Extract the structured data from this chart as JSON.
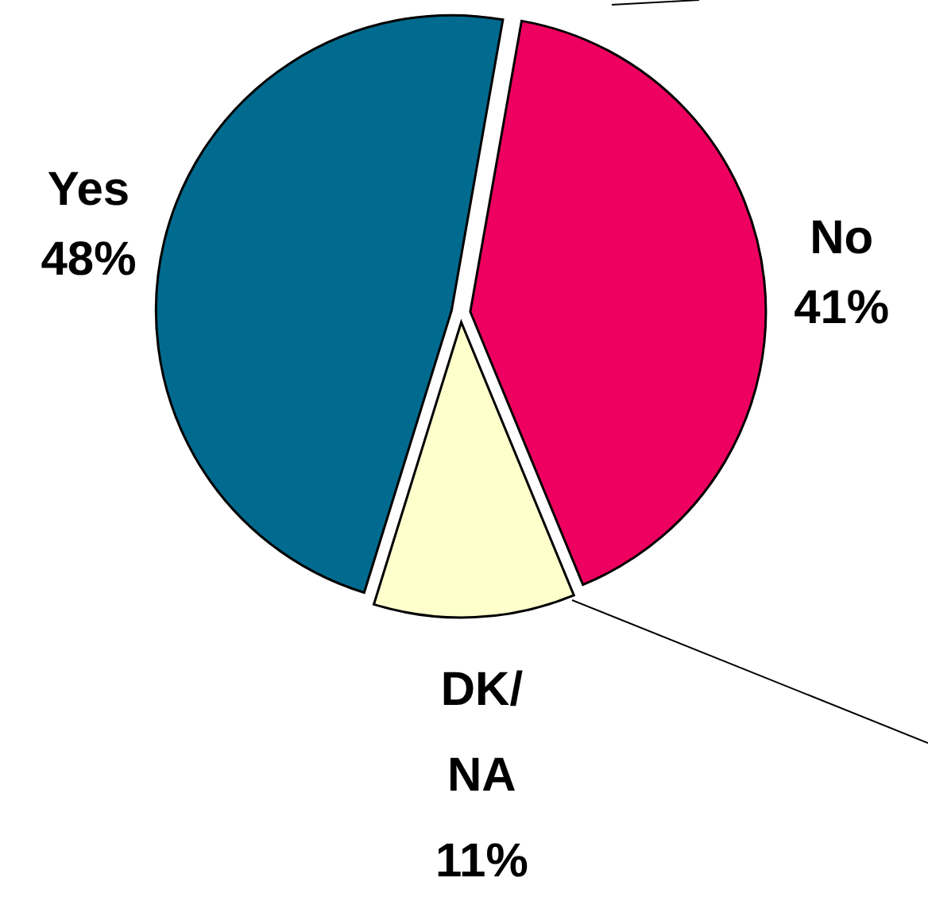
{
  "chart_data": {
    "type": "pie",
    "categories": [
      "No",
      "DK/NA",
      "Yes"
    ],
    "values": [
      41,
      11,
      48
    ],
    "colors": [
      "#ee0060",
      "#ffffcc",
      "#006b8f"
    ],
    "value_labels": [
      "41%",
      "11%",
      "48%"
    ]
  }
}
